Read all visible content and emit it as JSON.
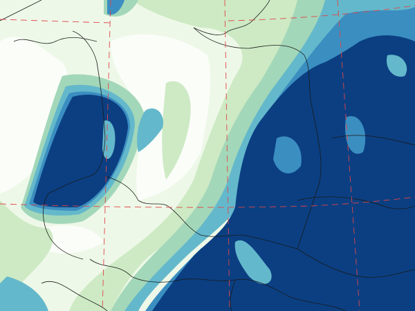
{
  "map": {
    "type": "precipitation-field",
    "palette": {
      "white": "#fbfdf9",
      "very_light_green": "#eef8e8",
      "light_green": "#cdeac4",
      "green_cyan": "#a3d7b9",
      "teal": "#64b8cb",
      "medium_blue": "#3b8ec0",
      "blue": "#2066a6",
      "dark_blue": "#0b3f82"
    },
    "border_color": "#1a1a1a",
    "gridline_color": "#e0454a"
  }
}
